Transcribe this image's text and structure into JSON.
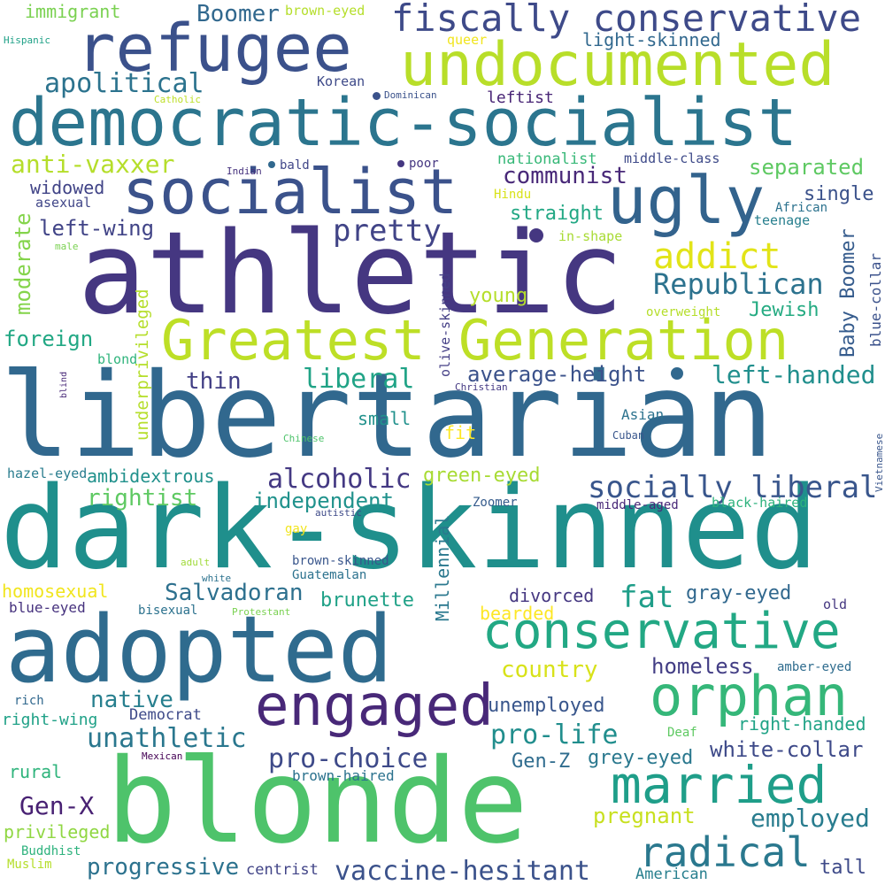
{
  "word_cloud": {
    "background": "#ffffff",
    "palette": [
      "#440154",
      "#46327e",
      "#365c8d",
      "#277f8e",
      "#1fa187",
      "#4ac16d",
      "#a0da39",
      "#fde725"
    ],
    "words": [
      {
        "text": "libertarian"
      },
      {
        "text": "dark-skinned"
      },
      {
        "text": "athletic"
      },
      {
        "text": "blonde"
      },
      {
        "text": "adopted"
      },
      {
        "text": "democratic-socialist"
      },
      {
        "text": "refugee"
      },
      {
        "text": "undocumented"
      },
      {
        "text": "socialist"
      },
      {
        "text": "ugly"
      },
      {
        "text": "Greatest Generation"
      },
      {
        "text": "conservative"
      },
      {
        "text": "engaged"
      },
      {
        "text": "orphan"
      },
      {
        "text": "married"
      },
      {
        "text": "fiscally conservative"
      },
      {
        "text": "radical"
      },
      {
        "text": "pretty"
      },
      {
        "text": "Republican"
      },
      {
        "text": "addict"
      },
      {
        "text": "socially liberal"
      },
      {
        "text": "alcoholic"
      },
      {
        "text": "pro-choice"
      },
      {
        "text": "pro-life"
      },
      {
        "text": "unathletic"
      },
      {
        "text": "progressive"
      },
      {
        "text": "vaccine-hesitant"
      },
      {
        "text": "anti-vaxxer"
      },
      {
        "text": "apolitical"
      },
      {
        "text": "liberal"
      },
      {
        "text": "communist"
      },
      {
        "text": "left-wing"
      },
      {
        "text": "Boomer"
      },
      {
        "text": "Salvadoran"
      },
      {
        "text": "left-handed"
      },
      {
        "text": "average-height"
      },
      {
        "text": "fat"
      },
      {
        "text": "Gen-X"
      },
      {
        "text": "Baby Boomer"
      },
      {
        "text": "Millennial"
      },
      {
        "text": "moderate"
      },
      {
        "text": "underprivileged"
      },
      {
        "text": "white-collar"
      },
      {
        "text": "employed"
      },
      {
        "text": "country"
      },
      {
        "text": "native"
      },
      {
        "text": "rightist"
      },
      {
        "text": "ambidextrous"
      },
      {
        "text": "separated"
      },
      {
        "text": "widowed"
      },
      {
        "text": "immigrant"
      },
      {
        "text": "thin"
      },
      {
        "text": "homeless"
      },
      {
        "text": "divorced"
      },
      {
        "text": "unemployed"
      },
      {
        "text": "gray-eyed"
      },
      {
        "text": "grey-eyed"
      },
      {
        "text": "pregnant"
      },
      {
        "text": "Gen-Z"
      },
      {
        "text": "independent"
      },
      {
        "text": "brunette"
      },
      {
        "text": "foreign"
      },
      {
        "text": "straight"
      },
      {
        "text": "Jewish"
      },
      {
        "text": "single"
      },
      {
        "text": "privileged"
      },
      {
        "text": "right-handed"
      },
      {
        "text": "tall"
      },
      {
        "text": "green-eyed"
      },
      {
        "text": "young"
      },
      {
        "text": "light-skinned"
      },
      {
        "text": "homosexual"
      },
      {
        "text": "leftist"
      },
      {
        "text": "middle-class"
      },
      {
        "text": "nationalist"
      },
      {
        "text": "blue-collar"
      },
      {
        "text": "olive-skinned"
      },
      {
        "text": "rural"
      },
      {
        "text": "right-wing"
      },
      {
        "text": "Democrat"
      },
      {
        "text": "small"
      },
      {
        "text": "fit"
      },
      {
        "text": "bearded"
      },
      {
        "text": "centrist"
      },
      {
        "text": "American"
      },
      {
        "text": "blue-eyed"
      },
      {
        "text": "brown-haired"
      },
      {
        "text": "hazel-eyed"
      },
      {
        "text": "brown-eyed"
      },
      {
        "text": "brown-skinned"
      },
      {
        "text": "middle-aged"
      },
      {
        "text": "black-haired"
      },
      {
        "text": "Asian"
      },
      {
        "text": "Korean"
      },
      {
        "text": "teenage"
      },
      {
        "text": "amber-eyed"
      },
      {
        "text": "African"
      },
      {
        "text": "queer"
      },
      {
        "text": "in-shape"
      },
      {
        "text": "overweight"
      },
      {
        "text": "asexual"
      },
      {
        "text": "Zoomer"
      },
      {
        "text": "Guatemalan"
      },
      {
        "text": "Buddhist"
      },
      {
        "text": "Muslim"
      },
      {
        "text": "rich"
      },
      {
        "text": "blond"
      },
      {
        "text": "bisexual"
      },
      {
        "text": "old"
      },
      {
        "text": "Deaf"
      },
      {
        "text": "Hindu"
      },
      {
        "text": "gay"
      },
      {
        "text": "bald"
      },
      {
        "text": "poor"
      },
      {
        "text": "Cuban"
      },
      {
        "text": "Hispanic"
      },
      {
        "text": "Catholic"
      },
      {
        "text": "Dominican"
      },
      {
        "text": "Indian"
      },
      {
        "text": "male"
      },
      {
        "text": "Christian"
      },
      {
        "text": "Chinese"
      },
      {
        "text": "blind"
      },
      {
        "text": "autistic"
      },
      {
        "text": "adult"
      },
      {
        "text": "white"
      },
      {
        "text": "Protestant"
      },
      {
        "text": "Mexican"
      },
      {
        "text": "Vietnamese"
      }
    ]
  }
}
